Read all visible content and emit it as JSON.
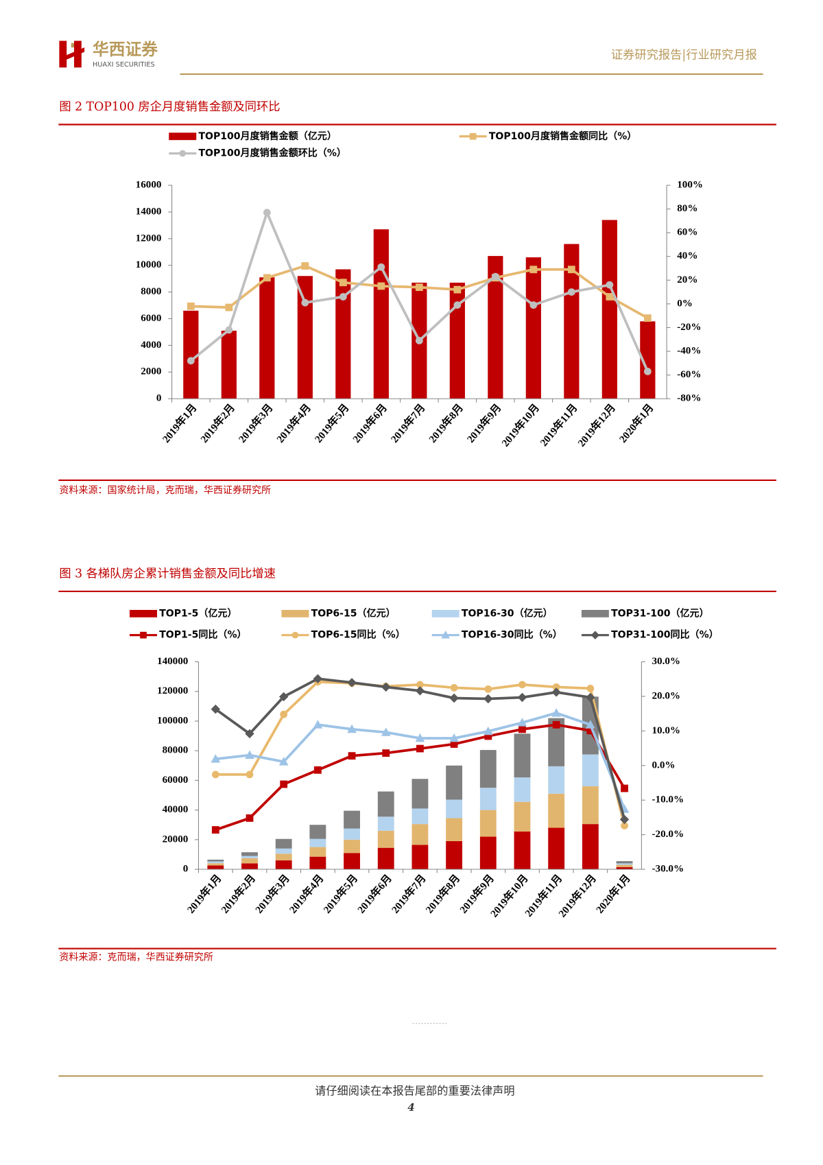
{
  "header": {
    "brand": "华西证券",
    "brand_en": "HUAXI SECURITIES",
    "report_type": "证券研究报告|行业研究月报"
  },
  "chart_data": [
    {
      "type": "combo",
      "title": "图 2   TOP100 房企月度销售金额及同环比",
      "source": "资料来源：国家统计局，克而瑞，华西证券研究所",
      "categories": [
        "2019年1月",
        "2019年2月",
        "2019年3月",
        "2019年4月",
        "2019年5月",
        "2019年6月",
        "2019年7月",
        "2019年8月",
        "2019年9月",
        "2019年10月",
        "2019年11月",
        "2019年12月",
        "2020年1月"
      ],
      "ylim": [
        0,
        16000
      ],
      "yticks": [
        0,
        2000,
        4000,
        6000,
        8000,
        10000,
        12000,
        14000,
        16000
      ],
      "y2lim": [
        -80,
        100
      ],
      "y2ticks": [
        {
          "value": -80,
          "label": "-80%"
        },
        {
          "value": -60,
          "label": "-60%"
        },
        {
          "value": -40,
          "label": "-40%"
        },
        {
          "value": -20,
          "label": "-20%"
        },
        {
          "value": 0,
          "label": "0%"
        },
        {
          "value": 20,
          "label": "20%"
        },
        {
          "value": 40,
          "label": "40%"
        },
        {
          "value": 60,
          "label": "60%"
        },
        {
          "value": 80,
          "label": "80%"
        },
        {
          "value": 100,
          "label": "100%"
        }
      ],
      "stacked": false,
      "series": [
        {
          "name": "TOP100月度销售金额（亿元）",
          "type": "bar",
          "color": "#c00000",
          "values": [
            6600,
            5100,
            9100,
            9200,
            9700,
            12700,
            8700,
            8700,
            10700,
            10600,
            11600,
            13400,
            5800
          ]
        },
        {
          "name": "TOP100月度销售金额同比（%）",
          "type": "line",
          "axis": "y2",
          "marker": "square",
          "color": "#e6b870",
          "values": [
            -2,
            -3,
            22,
            32,
            18,
            15,
            14,
            12,
            22,
            29,
            29,
            6,
            -12
          ]
        },
        {
          "name": "TOP100月度销售金额环比（%）",
          "type": "line",
          "axis": "y2",
          "marker": "circle",
          "color": "#bfbfbf",
          "values": [
            -48,
            -22,
            77,
            1,
            6,
            31,
            -31,
            -1,
            23,
            -1,
            10,
            16,
            -57
          ]
        }
      ]
    },
    {
      "type": "combo",
      "title": "图 3   各梯队房企累计销售金额及同比增速",
      "source": "资料来源：克而瑞，华西证券研究所",
      "categories": [
        "2019年1月",
        "2019年2月",
        "2019年3月",
        "2019年4月",
        "2019年5月",
        "2019年6月",
        "2019年7月",
        "2019年8月",
        "2019年9月",
        "2019年10月",
        "2019年11月",
        "2019年12月",
        "2020年1月"
      ],
      "ylim": [
        0,
        140000
      ],
      "yticks": [
        0,
        20000,
        40000,
        60000,
        80000,
        100000,
        120000,
        140000
      ],
      "y2lim": [
        -30,
        30
      ],
      "y2ticks": [
        {
          "value": -30,
          "label": "-30.0%"
        },
        {
          "value": -20,
          "label": "-20.0%"
        },
        {
          "value": -10,
          "label": "-10.0%"
        },
        {
          "value": 0,
          "label": "0.0%"
        },
        {
          "value": 10,
          "label": "10.0%"
        },
        {
          "value": 20,
          "label": "20.0%"
        },
        {
          "value": 30,
          "label": "30.0%"
        }
      ],
      "stacked": true,
      "series": [
        {
          "name": "TOP1-5（亿元）",
          "type": "bar",
          "color": "#c00000",
          "values": [
            2600,
            4000,
            6000,
            8500,
            11000,
            14500,
            16500,
            19000,
            22000,
            25500,
            28000,
            30500,
            1500
          ]
        },
        {
          "name": "TOP6-15（亿元）",
          "type": "bar",
          "color": "#e2b56e",
          "values": [
            1500,
            3500,
            4500,
            6500,
            9000,
            11500,
            14000,
            15500,
            18000,
            20000,
            23000,
            25500,
            1500
          ]
        },
        {
          "name": "TOP16-30（亿元）",
          "type": "bar",
          "color": "#b4d3ee",
          "values": [
            1200,
            1500,
            3500,
            5500,
            7500,
            9500,
            10500,
            12500,
            15000,
            16500,
            18500,
            21500,
            1000
          ]
        },
        {
          "name": "TOP31-100（亿元）",
          "type": "bar",
          "color": "#808080",
          "values": [
            1200,
            2500,
            6500,
            9500,
            12000,
            17000,
            20000,
            23000,
            25500,
            29500,
            32500,
            39000,
            1500
          ]
        },
        {
          "name": "TOP1-5同比（%）",
          "type": "line",
          "axis": "y2",
          "marker": "square",
          "color": "#c00000",
          "values": [
            -18.6,
            -15.2,
            -5.4,
            -1.3,
            2.8,
            3.6,
            4.9,
            6.2,
            8.5,
            10.5,
            11.8,
            10.1,
            -6.6
          ]
        },
        {
          "name": "TOP6-15同比（%）",
          "type": "line",
          "axis": "y2",
          "marker": "circle",
          "color": "#e8b96c",
          "values": [
            -2.6,
            -2.6,
            14.8,
            24.2,
            23.8,
            22.9,
            23.4,
            22.5,
            22.1,
            23.4,
            22.7,
            22.3,
            -17.4
          ]
        },
        {
          "name": "TOP16-30同比（%）",
          "type": "line",
          "axis": "y2",
          "marker": "triangle",
          "color": "#9dc3e6",
          "values": [
            1.9,
            3.0,
            1.1,
            11.8,
            10.5,
            9.6,
            7.9,
            7.9,
            9.9,
            12.4,
            15.2,
            11.8,
            -12.6
          ]
        },
        {
          "name": "TOP31-100同比（%）",
          "type": "line",
          "axis": "y2",
          "marker": "diamond",
          "color": "#595959",
          "values": [
            16.3,
            9.2,
            19.9,
            25.1,
            24.0,
            22.7,
            21.6,
            19.5,
            19.3,
            19.7,
            21.2,
            19.7,
            -15.6
          ]
        }
      ]
    }
  ],
  "footer": {
    "notice": "请仔细阅读在本报告尾部的重要法律声明",
    "page": "4"
  }
}
